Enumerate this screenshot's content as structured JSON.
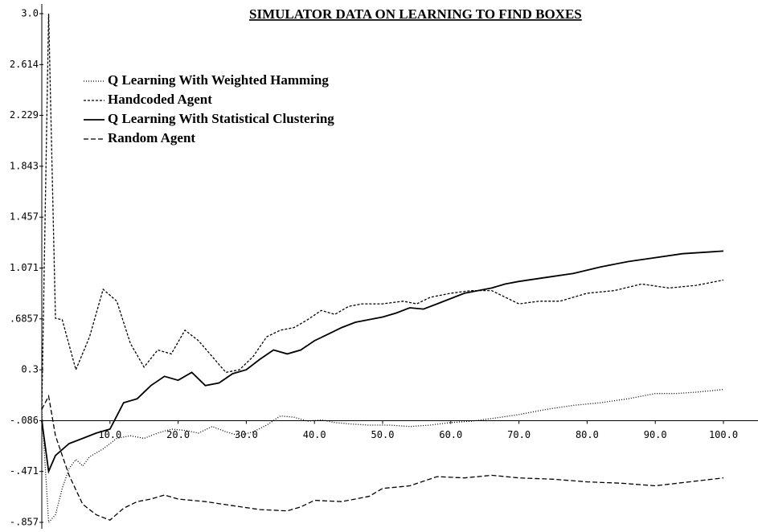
{
  "chart_data": {
    "type": "line",
    "title": "SIMULATOR DATA ON LEARNING TO FIND BOXES",
    "xlim": [
      0,
      100
    ],
    "ylim": [
      -0.857,
      3.0
    ],
    "xticks": [
      {
        "value": 10,
        "label": "10.0"
      },
      {
        "value": 20,
        "label": "20.0"
      },
      {
        "value": 30,
        "label": "30.0"
      },
      {
        "value": 40,
        "label": "40.0"
      },
      {
        "value": 50,
        "label": "50.0"
      },
      {
        "value": 60,
        "label": "60.0"
      },
      {
        "value": 70,
        "label": "70.0"
      },
      {
        "value": 80,
        "label": "80.0"
      },
      {
        "value": 90,
        "label": "90.0"
      },
      {
        "value": 100,
        "label": "100.0"
      }
    ],
    "yticks": [
      {
        "value": 3,
        "label": "3.0"
      },
      2.614,
      2.229,
      1.843,
      1.457,
      1.071,
      {
        "value": 0.6857,
        "label": ".6857"
      },
      0.3,
      {
        "value": -0.086,
        "label": "-.086"
      },
      {
        "value": -0.471,
        "label": "-.471"
      },
      {
        "value": -0.857,
        "label": "-.857"
      }
    ],
    "series": [
      {
        "name": "Q Learning With Weighted Hamming",
        "color": "#000000",
        "dash": "1,2",
        "x": [
          0,
          1,
          2,
          3,
          4,
          5,
          6,
          7,
          9,
          11,
          13,
          15,
          17,
          19,
          21,
          23,
          25,
          27,
          29,
          31,
          33,
          35,
          37,
          39,
          41,
          43,
          45,
          48,
          51,
          54,
          57,
          60,
          63,
          66,
          70,
          74,
          78,
          82,
          86,
          90,
          93,
          96,
          100
        ],
        "values": [
          0,
          -0.857,
          -0.8,
          -0.6,
          -0.45,
          -0.38,
          -0.43,
          -0.36,
          -0.3,
          -0.22,
          -0.2,
          -0.22,
          -0.18,
          -0.15,
          -0.16,
          -0.18,
          -0.13,
          -0.17,
          -0.2,
          -0.17,
          -0.12,
          -0.05,
          -0.06,
          -0.09,
          -0.08,
          -0.1,
          -0.11,
          -0.12,
          -0.12,
          -0.13,
          -0.12,
          -0.1,
          -0.09,
          -0.07,
          -0.04,
          0,
          0.03,
          0.05,
          0.08,
          0.12,
          0.12,
          0.13,
          0.15
        ]
      },
      {
        "name": "Handcoded Agent",
        "color": "#000000",
        "dash": "3,2",
        "x": [
          0,
          1,
          2,
          3,
          5,
          7,
          9,
          11,
          13,
          15,
          17,
          19,
          21,
          23,
          25,
          27,
          29,
          31,
          33,
          35,
          37,
          39,
          41,
          43,
          45,
          47,
          50,
          53,
          55,
          57,
          60,
          63,
          66,
          68,
          70,
          73,
          76,
          80,
          84,
          88,
          92,
          96,
          100
        ],
        "values": [
          0,
          3.0,
          0.69,
          0.68,
          0.3,
          0.55,
          0.91,
          0.82,
          0.5,
          0.32,
          0.45,
          0.42,
          0.6,
          0.52,
          0.4,
          0.28,
          0.3,
          0.4,
          0.55,
          0.6,
          0.62,
          0.68,
          0.75,
          0.72,
          0.78,
          0.8,
          0.8,
          0.82,
          0.8,
          0.85,
          0.88,
          0.9,
          0.9,
          0.85,
          0.8,
          0.82,
          0.82,
          0.88,
          0.9,
          0.95,
          0.92,
          0.94,
          0.98
        ]
      },
      {
        "name": "Q Learning With Statistical Clustering",
        "color": "#000000",
        "dash": "none",
        "x": [
          0,
          1,
          2,
          4,
          6,
          8,
          10,
          11,
          12,
          14,
          16,
          18,
          20,
          22,
          24,
          26,
          28,
          30,
          32,
          34,
          36,
          38,
          40,
          42,
          44,
          46,
          48,
          50,
          52,
          54,
          56,
          58,
          60,
          62,
          64,
          66,
          68,
          70,
          74,
          78,
          82,
          86,
          90,
          94,
          100
        ],
        "values": [
          -0.086,
          -0.47,
          -0.35,
          -0.26,
          -0.22,
          -0.18,
          -0.15,
          -0.05,
          0.05,
          0.08,
          0.18,
          0.25,
          0.22,
          0.28,
          0.18,
          0.2,
          0.27,
          0.3,
          0.38,
          0.45,
          0.42,
          0.45,
          0.52,
          0.57,
          0.62,
          0.66,
          0.68,
          0.7,
          0.73,
          0.77,
          0.76,
          0.8,
          0.84,
          0.88,
          0.9,
          0.92,
          0.95,
          0.97,
          1.0,
          1.03,
          1.08,
          1.12,
          1.15,
          1.18,
          1.2
        ]
      },
      {
        "name": "Random Agent",
        "color": "#000000",
        "dash": "6,3",
        "x": [
          0,
          1,
          2,
          4,
          6,
          8,
          10,
          12,
          14,
          16,
          18,
          20,
          24,
          28,
          32,
          36,
          38,
          40,
          44,
          48,
          50,
          54,
          58,
          62,
          66,
          70,
          75,
          80,
          85,
          90,
          95,
          100
        ],
        "values": [
          0,
          0.1,
          -0.2,
          -0.5,
          -0.72,
          -0.8,
          -0.84,
          -0.75,
          -0.7,
          -0.68,
          -0.65,
          -0.68,
          -0.7,
          -0.73,
          -0.76,
          -0.77,
          -0.74,
          -0.69,
          -0.7,
          -0.66,
          -0.6,
          -0.58,
          -0.51,
          -0.52,
          -0.5,
          -0.52,
          -0.53,
          -0.55,
          -0.56,
          -0.58,
          -0.55,
          -0.52
        ]
      }
    ]
  }
}
